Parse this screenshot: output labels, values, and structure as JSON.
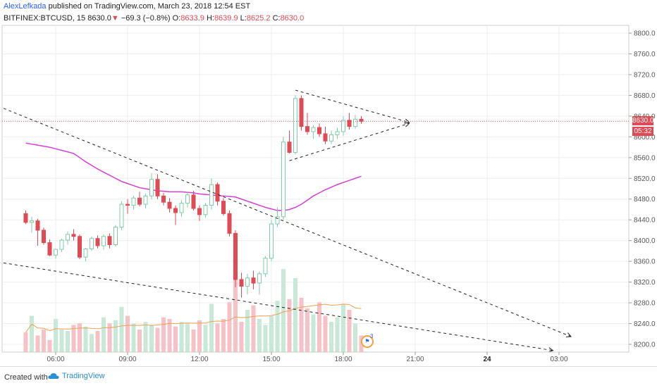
{
  "header": {
    "author": "AlexLefkada",
    "published_text": "published on TradingView.com, March 23, 2018 12:54 EST",
    "symbol": "BITFINEX:BTCUSD, 15",
    "last": "8630.0",
    "change_arrow": "▼",
    "change": "−69.3 (−0.8%)",
    "o_label": "O:",
    "o_value": "8633.9",
    "h_label": "H:",
    "h_value": "8639.9",
    "l_label": "L:",
    "l_value": "8625.2",
    "c_label": "C:",
    "c_value": "8630.0"
  },
  "price_scale": {
    "ticks": [
      "8800.0",
      "8760.0",
      "8720.0",
      "8680.0",
      "8640.0",
      "8600.0",
      "8560.0",
      "8520.0",
      "8480.0",
      "8440.0",
      "8400.0",
      "8360.0",
      "8320.0",
      "8280.0",
      "8240.0",
      "8200.0"
    ],
    "current_price_label": "8630.0",
    "timer_label": "05:32"
  },
  "time_axis": {
    "labels": [
      "06:00",
      "09:00",
      "12:00",
      "15:00",
      "18:00",
      "21:00",
      "24",
      "03:00"
    ]
  },
  "event": {
    "count": "3"
  },
  "footer": {
    "created_with": "Created with",
    "brand": "TradingView"
  },
  "colors": {
    "up": "#7fcca6",
    "down": "#e04a55",
    "ma": "#d43fd4",
    "vol_ma": "#f0a050",
    "grid": "#eeeeee"
  },
  "chart_data": {
    "type": "candlestick",
    "symbol": "BITFINEX:BTCUSD",
    "interval": "15",
    "price_range": [
      8185,
      8815
    ],
    "candles": [
      {
        "t": "04:45",
        "o": 8452,
        "h": 8458,
        "l": 8432,
        "c": 8435
      },
      {
        "t": "05:00",
        "o": 8435,
        "h": 8446,
        "l": 8415,
        "c": 8438
      },
      {
        "t": "05:15",
        "o": 8438,
        "h": 8442,
        "l": 8390,
        "c": 8420
      },
      {
        "t": "05:30",
        "o": 8420,
        "h": 8425,
        "l": 8392,
        "c": 8396
      },
      {
        "t": "05:45",
        "o": 8396,
        "h": 8402,
        "l": 8370,
        "c": 8372
      },
      {
        "t": "06:00",
        "o": 8372,
        "h": 8384,
        "l": 8365,
        "c": 8383
      },
      {
        "t": "06:15",
        "o": 8383,
        "h": 8404,
        "l": 8378,
        "c": 8401
      },
      {
        "t": "06:30",
        "o": 8401,
        "h": 8418,
        "l": 8392,
        "c": 8412
      },
      {
        "t": "06:45",
        "o": 8412,
        "h": 8422,
        "l": 8400,
        "c": 8408
      },
      {
        "t": "07:00",
        "o": 8408,
        "h": 8412,
        "l": 8364,
        "c": 8368
      },
      {
        "t": "07:15",
        "o": 8368,
        "h": 8386,
        "l": 8360,
        "c": 8384
      },
      {
        "t": "07:30",
        "o": 8384,
        "h": 8408,
        "l": 8380,
        "c": 8404
      },
      {
        "t": "07:45",
        "o": 8404,
        "h": 8410,
        "l": 8385,
        "c": 8390
      },
      {
        "t": "08:00",
        "o": 8390,
        "h": 8412,
        "l": 8382,
        "c": 8408
      },
      {
        "t": "08:15",
        "o": 8408,
        "h": 8414,
        "l": 8385,
        "c": 8392
      },
      {
        "t": "08:30",
        "o": 8392,
        "h": 8430,
        "l": 8388,
        "c": 8426
      },
      {
        "t": "08:45",
        "o": 8426,
        "h": 8476,
        "l": 8420,
        "c": 8470
      },
      {
        "t": "09:00",
        "o": 8470,
        "h": 8480,
        "l": 8452,
        "c": 8468
      },
      {
        "t": "09:15",
        "o": 8468,
        "h": 8486,
        "l": 8460,
        "c": 8482
      },
      {
        "t": "09:30",
        "o": 8482,
        "h": 8494,
        "l": 8466,
        "c": 8470
      },
      {
        "t": "09:45",
        "o": 8470,
        "h": 8490,
        "l": 8462,
        "c": 8486
      },
      {
        "t": "10:00",
        "o": 8486,
        "h": 8530,
        "l": 8480,
        "c": 8518
      },
      {
        "t": "10:15",
        "o": 8518,
        "h": 8528,
        "l": 8480,
        "c": 8486
      },
      {
        "t": "10:30",
        "o": 8486,
        "h": 8492,
        "l": 8468,
        "c": 8474
      },
      {
        "t": "10:45",
        "o": 8474,
        "h": 8482,
        "l": 8454,
        "c": 8462
      },
      {
        "t": "11:00",
        "o": 8462,
        "h": 8468,
        "l": 8430,
        "c": 8454
      },
      {
        "t": "11:15",
        "o": 8454,
        "h": 8478,
        "l": 8446,
        "c": 8472
      },
      {
        "t": "11:30",
        "o": 8472,
        "h": 8494,
        "l": 8464,
        "c": 8488
      },
      {
        "t": "11:45",
        "o": 8488,
        "h": 8496,
        "l": 8458,
        "c": 8462
      },
      {
        "t": "12:00",
        "o": 8462,
        "h": 8468,
        "l": 8438,
        "c": 8450
      },
      {
        "t": "12:15",
        "o": 8450,
        "h": 8472,
        "l": 8444,
        "c": 8468
      },
      {
        "t": "12:30",
        "o": 8468,
        "h": 8520,
        "l": 8460,
        "c": 8508
      },
      {
        "t": "12:45",
        "o": 8508,
        "h": 8512,
        "l": 8468,
        "c": 8476
      },
      {
        "t": "13:00",
        "o": 8476,
        "h": 8482,
        "l": 8448,
        "c": 8452
      },
      {
        "t": "13:15",
        "o": 8452,
        "h": 8458,
        "l": 8408,
        "c": 8414
      },
      {
        "t": "13:30",
        "o": 8414,
        "h": 8420,
        "l": 8310,
        "c": 8325
      },
      {
        "t": "13:45",
        "o": 8325,
        "h": 8338,
        "l": 8290,
        "c": 8312
      },
      {
        "t": "14:00",
        "o": 8312,
        "h": 8336,
        "l": 8296,
        "c": 8328
      },
      {
        "t": "14:15",
        "o": 8328,
        "h": 8342,
        "l": 8306,
        "c": 8318
      },
      {
        "t": "14:30",
        "o": 8318,
        "h": 8340,
        "l": 8296,
        "c": 8336
      },
      {
        "t": "14:45",
        "o": 8336,
        "h": 8370,
        "l": 8330,
        "c": 8366
      },
      {
        "t": "15:00",
        "o": 8366,
        "h": 8440,
        "l": 8360,
        "c": 8432
      },
      {
        "t": "15:15",
        "o": 8432,
        "h": 8464,
        "l": 8426,
        "c": 8446
      },
      {
        "t": "15:30",
        "o": 8446,
        "h": 8600,
        "l": 8440,
        "c": 8590
      },
      {
        "t": "15:45",
        "o": 8590,
        "h": 8612,
        "l": 8568,
        "c": 8570
      },
      {
        "t": "16:00",
        "o": 8570,
        "h": 8680,
        "l": 8566,
        "c": 8674
      },
      {
        "t": "16:15",
        "o": 8674,
        "h": 8680,
        "l": 8612,
        "c": 8620
      },
      {
        "t": "16:30",
        "o": 8620,
        "h": 8646,
        "l": 8604,
        "c": 8610
      },
      {
        "t": "16:45",
        "o": 8610,
        "h": 8622,
        "l": 8596,
        "c": 8618
      },
      {
        "t": "17:00",
        "o": 8618,
        "h": 8626,
        "l": 8600,
        "c": 8606
      },
      {
        "t": "17:15",
        "o": 8606,
        "h": 8620,
        "l": 8586,
        "c": 8592
      },
      {
        "t": "17:30",
        "o": 8592,
        "h": 8612,
        "l": 8586,
        "c": 8604
      },
      {
        "t": "17:45",
        "o": 8604,
        "h": 8618,
        "l": 8596,
        "c": 8610
      },
      {
        "t": "18:00",
        "o": 8610,
        "h": 8640,
        "l": 8602,
        "c": 8632
      },
      {
        "t": "18:15",
        "o": 8632,
        "h": 8646,
        "l": 8614,
        "c": 8620
      },
      {
        "t": "18:30",
        "o": 8620,
        "h": 8642,
        "l": 8616,
        "c": 8634
      },
      {
        "t": "18:45",
        "o": 8634,
        "h": 8640,
        "l": 8625,
        "c": 8630
      }
    ],
    "volume": [
      26,
      48,
      22,
      30,
      16,
      44,
      30,
      28,
      36,
      38,
      34,
      24,
      28,
      46,
      38,
      42,
      60,
      48,
      38,
      30,
      40,
      36,
      32,
      46,
      44,
      34,
      40,
      38,
      30,
      42,
      36,
      64,
      38,
      44,
      66,
      128,
      40,
      56,
      62,
      44,
      36,
      48,
      68,
      110,
      70,
      98,
      72,
      58,
      50,
      66,
      48,
      40,
      46,
      64,
      56,
      38,
      22
    ],
    "moving_average": [
      8588,
      8584,
      8580,
      8574,
      8568,
      8560,
      8552,
      8545,
      8538,
      8532,
      8526,
      8520,
      8514,
      8510,
      8506,
      8502,
      8500,
      8498,
      8496,
      8495,
      8494,
      8494,
      8494,
      8493,
      8492,
      8490,
      8489,
      8488,
      8487,
      8486,
      8485,
      8484,
      8480,
      8476,
      8472,
      8468,
      8464,
      8461,
      8458,
      8458,
      8460,
      8464,
      8470,
      8478,
      8486,
      8492,
      8498,
      8503,
      8508,
      8512,
      8516,
      8520,
      8524
    ],
    "drawings": [
      {
        "type": "trend-line",
        "style": "dashed",
        "from": {
          "t": "04:45",
          "price": 8655
        },
        "to": {
          "t": "03:30",
          "price": 8215
        }
      },
      {
        "type": "trend-line",
        "style": "dashed",
        "from": {
          "t": "04:45",
          "price": 8357
        },
        "to": {
          "t": "02:45",
          "price": 8188
        }
      },
      {
        "type": "trend-line",
        "style": "dashed",
        "from": {
          "t": "16:00",
          "price": 8690
        },
        "to": {
          "t": "20:45",
          "price": 8628
        }
      },
      {
        "type": "trend-line",
        "style": "dashed",
        "from": {
          "t": "15:45",
          "price": 8554
        },
        "to": {
          "t": "20:45",
          "price": 8626
        }
      }
    ],
    "time_labels": [
      "06:00",
      "09:00",
      "12:00",
      "15:00",
      "18:00",
      "21:00",
      "24",
      "03:00"
    ]
  }
}
